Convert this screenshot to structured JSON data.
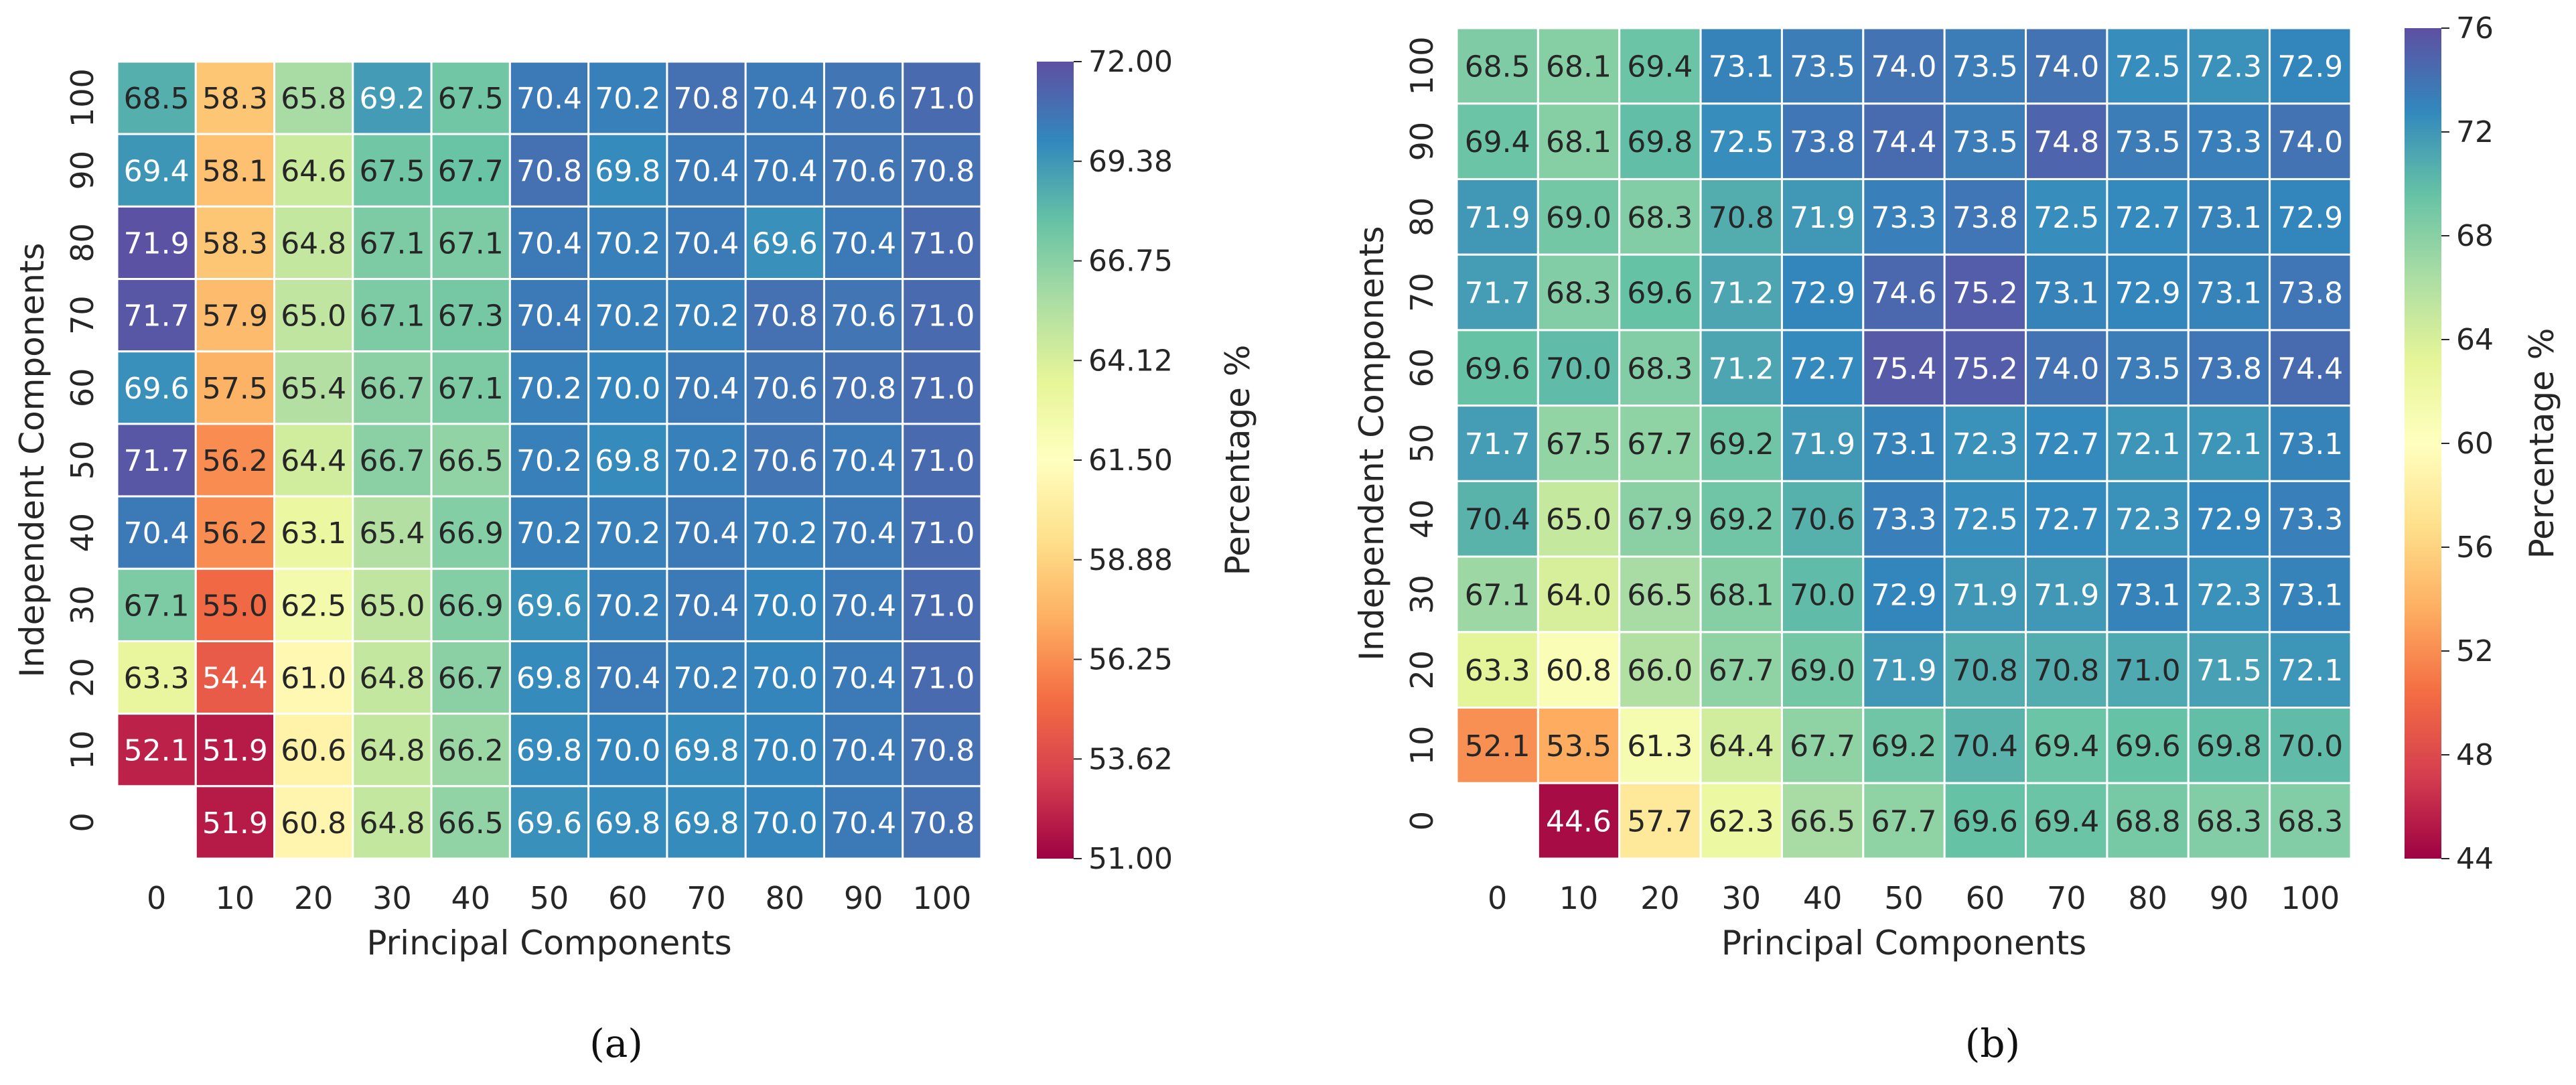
{
  "chart_data": [
    {
      "type": "heatmap",
      "panel": "a",
      "caption": "(a)",
      "xlabel": "Principal Components",
      "ylabel": "Independent Components",
      "x_ticks": [
        "0",
        "10",
        "20",
        "30",
        "40",
        "50",
        "60",
        "70",
        "80",
        "90",
        "100"
      ],
      "y_ticks": [
        "100",
        "90",
        "80",
        "70",
        "60",
        "50",
        "40",
        "30",
        "20",
        "10",
        "0"
      ],
      "colorbar_label": "Percentage %",
      "colorbar_range": [
        51.0,
        72.0
      ],
      "colorbar_ticks": [
        "72.00",
        "69.38",
        "66.75",
        "64.12",
        "61.50",
        "58.88",
        "56.25",
        "53.62",
        "51.00"
      ],
      "colorbar_tick_values": [
        72.0,
        69.375,
        66.75,
        64.125,
        61.5,
        58.875,
        56.25,
        53.625,
        51.0
      ],
      "values": [
        [
          68.5,
          58.3,
          65.8,
          69.2,
          67.5,
          70.4,
          70.2,
          70.8,
          70.4,
          70.6,
          71.0
        ],
        [
          69.4,
          58.1,
          64.6,
          67.5,
          67.7,
          70.8,
          69.8,
          70.4,
          70.4,
          70.6,
          70.8
        ],
        [
          71.9,
          58.3,
          64.8,
          67.1,
          67.1,
          70.4,
          70.2,
          70.4,
          69.6,
          70.4,
          71.0
        ],
        [
          71.7,
          57.9,
          65.0,
          67.1,
          67.3,
          70.4,
          70.2,
          70.2,
          70.8,
          70.6,
          71.0
        ],
        [
          69.6,
          57.5,
          65.4,
          66.7,
          67.1,
          70.2,
          70.0,
          70.4,
          70.6,
          70.8,
          71.0
        ],
        [
          71.7,
          56.2,
          64.4,
          66.7,
          66.5,
          70.2,
          69.8,
          70.2,
          70.6,
          70.4,
          71.0
        ],
        [
          70.4,
          56.2,
          63.1,
          65.4,
          66.9,
          70.2,
          70.2,
          70.4,
          70.2,
          70.4,
          71.0
        ],
        [
          67.1,
          55.0,
          62.5,
          65.0,
          66.9,
          69.6,
          70.2,
          70.4,
          70.0,
          70.4,
          71.0
        ],
        [
          63.3,
          54.4,
          61.0,
          64.8,
          66.7,
          69.8,
          70.4,
          70.2,
          70.0,
          70.4,
          71.0
        ],
        [
          52.1,
          51.9,
          60.6,
          64.8,
          66.2,
          69.8,
          70.0,
          69.8,
          70.0,
          70.4,
          70.8
        ],
        [
          null,
          51.9,
          60.8,
          64.8,
          66.5,
          69.6,
          69.8,
          69.8,
          70.0,
          70.4,
          70.8
        ]
      ]
    },
    {
      "type": "heatmap",
      "panel": "b",
      "caption": "(b)",
      "xlabel": "Principal Components",
      "ylabel": "Independent Components",
      "x_ticks": [
        "0",
        "10",
        "20",
        "30",
        "40",
        "50",
        "60",
        "70",
        "80",
        "90",
        "100"
      ],
      "y_ticks": [
        "100",
        "90",
        "80",
        "70",
        "60",
        "50",
        "40",
        "30",
        "20",
        "10",
        "0"
      ],
      "colorbar_label": "Percentage %",
      "colorbar_range": [
        44,
        76
      ],
      "colorbar_ticks": [
        "76",
        "72",
        "68",
        "64",
        "60",
        "56",
        "52",
        "48",
        "44"
      ],
      "colorbar_tick_values": [
        76,
        72,
        68,
        64,
        60,
        56,
        52,
        48,
        44
      ],
      "values": [
        [
          68.5,
          68.1,
          69.4,
          73.1,
          73.5,
          74.0,
          73.5,
          74.0,
          72.5,
          72.3,
          72.9
        ],
        [
          69.4,
          68.1,
          69.8,
          72.5,
          73.8,
          74.4,
          73.5,
          74.8,
          73.5,
          73.3,
          74.0
        ],
        [
          71.9,
          69.0,
          68.3,
          70.8,
          71.9,
          73.3,
          73.8,
          72.5,
          72.7,
          73.1,
          72.9
        ],
        [
          71.7,
          68.3,
          69.6,
          71.2,
          72.9,
          74.6,
          75.2,
          73.1,
          72.9,
          73.1,
          73.8
        ],
        [
          69.6,
          70.0,
          68.3,
          71.2,
          72.7,
          75.4,
          75.2,
          74.0,
          73.5,
          73.8,
          74.4
        ],
        [
          71.7,
          67.5,
          67.7,
          69.2,
          71.9,
          73.1,
          72.3,
          72.7,
          72.1,
          72.1,
          73.1
        ],
        [
          70.4,
          65.0,
          67.9,
          69.2,
          70.6,
          73.3,
          72.5,
          72.7,
          72.3,
          72.9,
          73.3
        ],
        [
          67.1,
          64.0,
          66.5,
          68.1,
          70.0,
          72.9,
          71.9,
          71.9,
          73.1,
          72.3,
          73.1
        ],
        [
          63.3,
          60.8,
          66.0,
          67.7,
          69.0,
          71.9,
          70.8,
          70.8,
          71.0,
          71.5,
          72.1
        ],
        [
          52.1,
          53.5,
          61.3,
          64.4,
          67.7,
          69.2,
          70.4,
          69.4,
          69.6,
          69.8,
          70.0
        ],
        [
          null,
          44.6,
          57.7,
          62.3,
          66.5,
          67.7,
          69.6,
          69.4,
          68.8,
          68.3,
          68.3
        ]
      ]
    }
  ]
}
